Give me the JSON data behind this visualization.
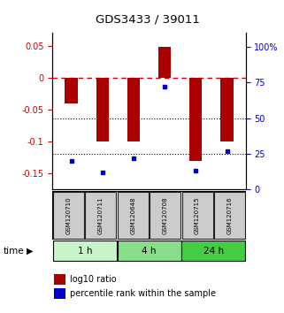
{
  "title": "GDS3433 / 39011",
  "samples": [
    "GSM120710",
    "GSM120711",
    "GSM120648",
    "GSM120708",
    "GSM120715",
    "GSM120716"
  ],
  "log10_ratio": [
    -0.04,
    -0.1,
    -0.1,
    0.048,
    -0.13,
    -0.1
  ],
  "percentile_rank": [
    20,
    12,
    22,
    72,
    13,
    27
  ],
  "groups": [
    {
      "label": "1 h",
      "indices": [
        0,
        1
      ],
      "color": "#c8f0c8"
    },
    {
      "label": "4 h",
      "indices": [
        2,
        3
      ],
      "color": "#90d890"
    },
    {
      "label": "24 h",
      "indices": [
        4,
        5
      ],
      "color": "#50c050"
    }
  ],
  "bar_color": "#aa0000",
  "dot_color": "#0000cc",
  "bar_width": 0.4,
  "ylim_left": [
    -0.175,
    0.07
  ],
  "ylim_right": [
    0,
    110
  ],
  "yticks_left": [
    0.05,
    0,
    -0.05,
    -0.1,
    -0.15
  ],
  "yticks_right": [
    100,
    75,
    50,
    25,
    0
  ],
  "zero_line_color": "#cc0000",
  "dot_line_color": "#000000",
  "legend_bar_label": "log10 ratio",
  "legend_dot_label": "percentile rank within the sample",
  "background_color": "#ffffff",
  "sample_box_color": "#cccccc",
  "sample_box_edge": "#222222",
  "group1_color": "#c8f5c8",
  "group2_color": "#88dd88",
  "group3_color": "#44cc44"
}
